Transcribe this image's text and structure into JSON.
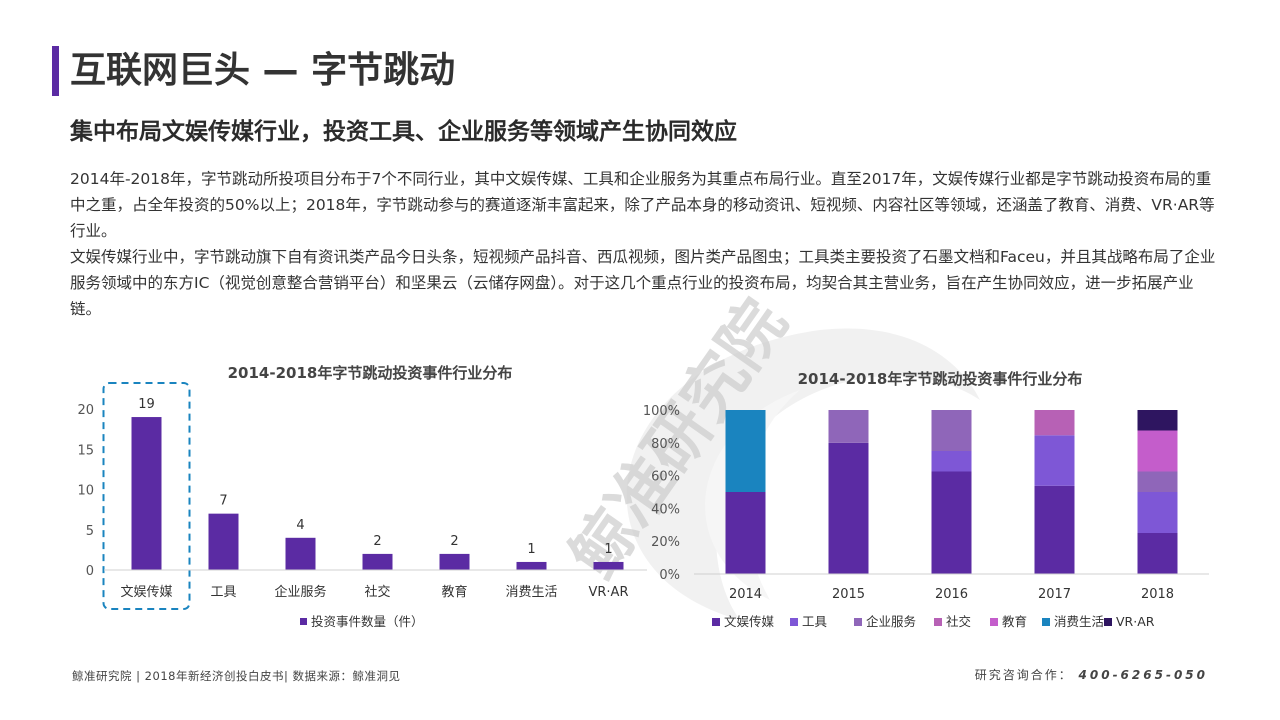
{
  "header": {
    "title": "互联网巨头 — 字节跳动",
    "subtitle": "集中布局文娱传媒行业，投资工具、企业服务等领域产生协同效应"
  },
  "body": {
    "paragraph1": "2014年-2018年，字节跳动所投项目分布于7个不同行业，其中文娱传媒、工具和企业服务为其重点布局行业。直至2017年，文娱传媒行业都是字节跳动投资布局的重中之重，占全年投资的50%以上；2018年，字节跳动参与的赛道逐渐丰富起来，除了产品本身的移动资讯、短视频、内容社区等领域，还涵盖了教育、消费、VR·AR等行业。",
    "paragraph2": "文娱传媒行业中，字节跳动旗下自有资讯类产品今日头条，短视频产品抖音、西瓜视频，图片类产品图虫；工具类主要投资了石墨文档和Faceu，并且其战略布局了企业服务领域中的东方IC（视觉创意整合营销平台）和坚果云（云储存网盘）。对于这几个重点行业的投资布局，均契合其主营业务，旨在产生协同效应，进一步拓展产业链。"
  },
  "watermark": {
    "text": "鲸准研究院"
  },
  "colors": {
    "accent": "#5B2BA3",
    "wenyu": "#5B2BA3",
    "gongju": "#7E57D6",
    "qiye": "#8F66B9",
    "shejiao": "#B761B5",
    "jiaoyu": "#C45DCB",
    "xiaofei": "#1A84BF",
    "vrar": "#2E1560",
    "highlight": "#1A84BF"
  },
  "chart_data": [
    {
      "type": "bar",
      "title": "2014-2018年字节跳动投资事件行业分布",
      "categories": [
        "文娱传媒",
        "工具",
        "企业服务",
        "社交",
        "教育",
        "消费生活",
        "VR·AR"
      ],
      "series": [
        {
          "name": "投资事件数量（件）",
          "values": [
            19,
            7,
            4,
            2,
            2,
            1,
            1
          ]
        }
      ],
      "ylim": [
        0,
        20
      ],
      "yticks": [
        0,
        5,
        10,
        15,
        20
      ],
      "highlight_category": "文娱传媒",
      "legend_position": "bottom",
      "grid": false
    },
    {
      "type": "bar",
      "stacked": true,
      "title": "2014-2018年字节跳动投资事件行业分布",
      "categories": [
        "2014",
        "2015",
        "2016",
        "2017",
        "2018"
      ],
      "yticks": [
        "0%",
        "20%",
        "40%",
        "60%",
        "80%",
        "100%"
      ],
      "ylim": [
        0,
        100
      ],
      "series": [
        {
          "name": "文娱传媒",
          "values": [
            50,
            80,
            62.5,
            53.8,
            25
          ]
        },
        {
          "name": "工具",
          "values": [
            0,
            0,
            12.5,
            30.8,
            25
          ]
        },
        {
          "name": "企业服务",
          "values": [
            0,
            20,
            25,
            0,
            12.5
          ]
        },
        {
          "name": "社交",
          "values": [
            0,
            0,
            0,
            15.4,
            0
          ]
        },
        {
          "name": "教育",
          "values": [
            0,
            0,
            0,
            0,
            25
          ]
        },
        {
          "name": "消费生活",
          "values": [
            50,
            0,
            0,
            0,
            0
          ]
        },
        {
          "name": "VR·AR",
          "values": [
            0,
            0,
            0,
            0,
            12.5
          ]
        }
      ],
      "legend_position": "bottom",
      "grid": false
    }
  ],
  "footer": {
    "left": "鲸准研究院 | 2018年新经济创投白皮书| 数据来源：鲸准洞见",
    "right_label": "研究咨询合作：",
    "right_phone": "400-6265-050"
  }
}
